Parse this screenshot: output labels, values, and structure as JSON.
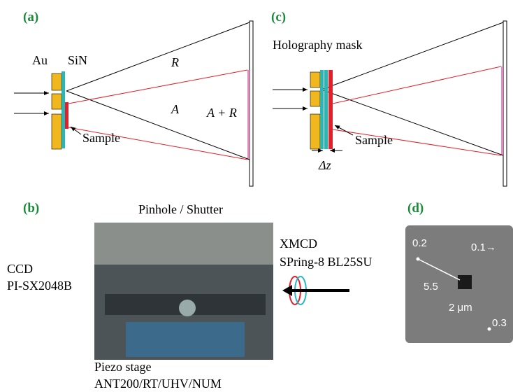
{
  "panel_a": {
    "label": "(a)",
    "au": "Au",
    "sin": "SiN",
    "r": "R",
    "a": "A",
    "a_plus_r": "A + R",
    "sample": "Sample"
  },
  "panel_c": {
    "label": "(c)",
    "mask": "Holography mask",
    "sample": "Sample",
    "dz": "Δz"
  },
  "panel_b": {
    "label": "(b)",
    "pinhole": "Pinhole / Shutter",
    "ccd": "CCD",
    "ccd_model": "PI-SX2048B",
    "xmcd": "XMCD",
    "beamline": "SPring-8 BL25SU",
    "stage": "Piezo stage",
    "stage_model": "ANT200/RT/UHV/NUM"
  },
  "panel_d": {
    "label": "(d)",
    "t1": "0.2",
    "t2": "0.1→",
    "t3": "5.5",
    "t4": "2 μm",
    "t5": "0.3"
  }
}
